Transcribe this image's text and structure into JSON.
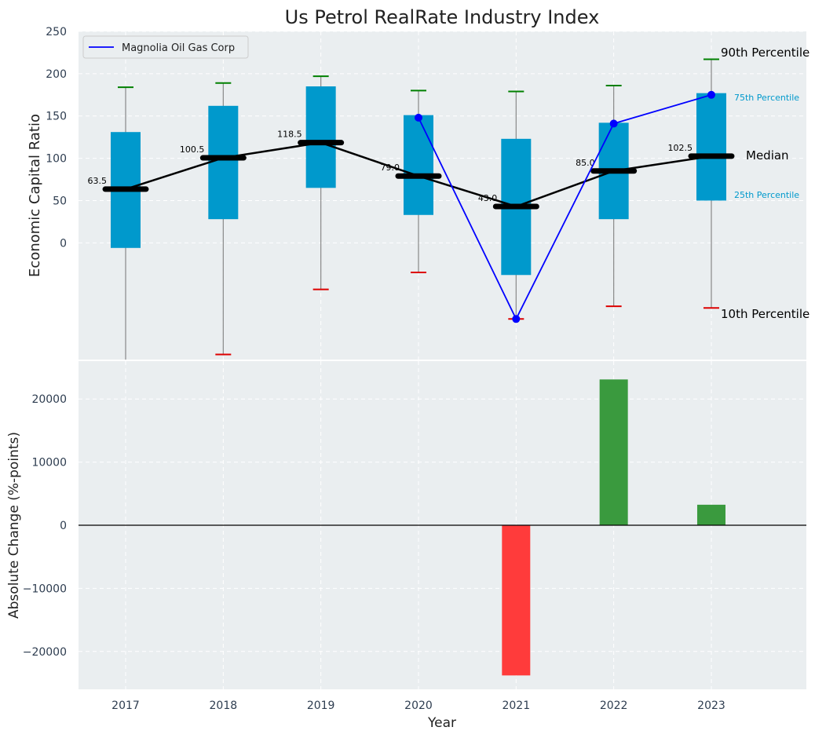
{
  "colors": {
    "panel_bg": "#eaeef0",
    "grid": "#ffffff",
    "box": "#0099cc",
    "whisker": "#888888",
    "cap_high": "#008000",
    "cap_low": "#dd0000",
    "median": "#000000",
    "company": "#0000ff",
    "bar_pos": "#3a9a3e",
    "bar_neg": "#ff3b3b",
    "label_blue": "#0099cc",
    "axis_text": "#2e3d50"
  },
  "chart_data": [
    {
      "type": "box",
      "title": "Us Petrol RealRate Industry Index",
      "xlabel": "",
      "ylabel": "Economic Capital Ratio",
      "ylim": [
        -138,
        250
      ],
      "yticks": [
        0,
        50,
        100,
        150,
        200,
        250
      ],
      "ytick_labels": [
        "0",
        "50",
        "100",
        "150",
        "200",
        "250"
      ],
      "categories": [
        "2017",
        "2018",
        "2019",
        "2020",
        "2021",
        "2022",
        "2023"
      ],
      "p10": [
        -140,
        -132,
        -55,
        -35,
        -90,
        -75,
        -77
      ],
      "p25": [
        -6,
        28,
        65,
        33,
        -38,
        28,
        50
      ],
      "median": [
        63.5,
        100.5,
        118.5,
        79.0,
        43.0,
        85.0,
        102.5
      ],
      "median_labels": [
        "63.5",
        "100.5",
        "118.5",
        "79.0",
        "43.0",
        "85.0",
        "102.5"
      ],
      "p75": [
        131,
        162,
        185,
        151,
        123,
        142,
        177
      ],
      "p90": [
        184,
        189,
        197,
        180,
        179,
        186,
        217
      ],
      "series": [
        {
          "name": "Magnolia Oil Gas Corp",
          "x": [
            "2020",
            "2021",
            "2022",
            "2023"
          ],
          "values": [
            148,
            -90,
            141,
            175
          ]
        }
      ],
      "legend": {
        "position": "top-left",
        "label": "Magnolia Oil Gas Corp"
      },
      "annotations": {
        "p90": "90th Percentile",
        "p75": "75th Percentile",
        "median": "Median",
        "p25": "25th Percentile",
        "p10": "10th Percentile"
      }
    },
    {
      "type": "bar",
      "xlabel": "Year",
      "ylabel": "Absolute Change (%-points)",
      "ylim": [
        -26000,
        26000
      ],
      "yticks": [
        -20000,
        -10000,
        0,
        10000,
        20000
      ],
      "ytick_labels": [
        "−20000",
        "−10000",
        "0",
        "10000",
        "20000"
      ],
      "categories": [
        "2017",
        "2018",
        "2019",
        "2020",
        "2021",
        "2022",
        "2023"
      ],
      "values": [
        0,
        0,
        0,
        0,
        -23800,
        23100,
        3250
      ]
    }
  ]
}
